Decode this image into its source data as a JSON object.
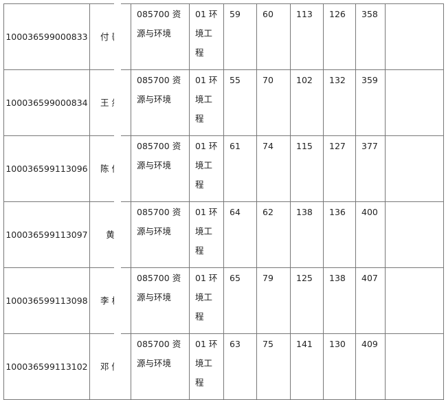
{
  "rows": [
    {
      "id": "100036599000833",
      "name": "付 馨",
      "program": "085700 资源与环境",
      "direction": "01 环境工程",
      "s1": "59",
      "s2": "60",
      "s3": "113",
      "s4": "126",
      "total": "358",
      "note": ""
    },
    {
      "id": "100036599000834",
      "name": "王 然",
      "program": "085700 资源与环境",
      "direction": "01 环境工程",
      "s1": "55",
      "s2": "70",
      "s3": "102",
      "s4": "132",
      "total": "359",
      "note": ""
    },
    {
      "id": "100036599113096",
      "name": "陈 俊",
      "program": "085700 资源与环境",
      "direction": "01 环境工程",
      "s1": "61",
      "s2": "74",
      "s3": "115",
      "s4": "127",
      "total": "377",
      "note": ""
    },
    {
      "id": "100036599113097",
      "name": "黄",
      "program": "085700 资源与环境",
      "direction": "01 环境工程",
      "s1": "64",
      "s2": "62",
      "s3": "138",
      "s4": "136",
      "total": "400",
      "note": ""
    },
    {
      "id": "100036599113098",
      "name": "李 杭",
      "program": "085700 资源与环境",
      "direction": "01 环境工程",
      "s1": "65",
      "s2": "79",
      "s3": "125",
      "s4": "138",
      "total": "407",
      "note": ""
    },
    {
      "id": "100036599113102",
      "name": "邓 倩",
      "program": "085700 资源与环境",
      "direction": "01 环境工程",
      "s1": "63",
      "s2": "75",
      "s3": "141",
      "s4": "130",
      "total": "409",
      "note": ""
    }
  ]
}
